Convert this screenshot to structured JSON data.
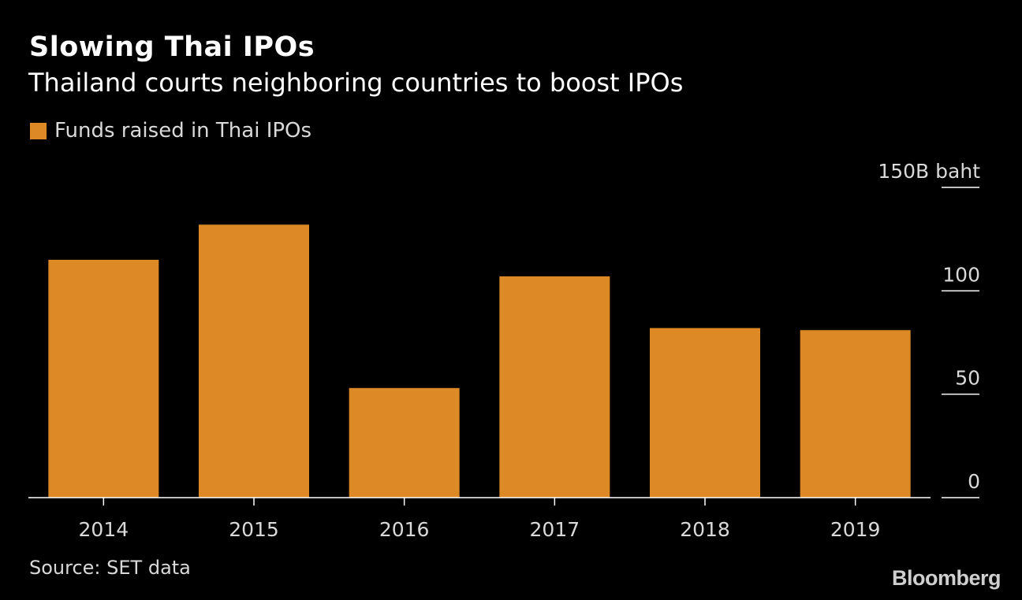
{
  "header": {
    "title": "Slowing Thai IPOs",
    "subtitle": "Thailand courts neighboring countries to boost IPOs"
  },
  "footer": {
    "source": "Source: SET data",
    "brand": "Bloomberg"
  },
  "colors": {
    "background": "#000000",
    "bar": "#dc8926",
    "axis": "#ffffff",
    "text": "#d9d9d9"
  },
  "chart_data": {
    "type": "bar",
    "title": "Slowing Thai IPOs",
    "subtitle": "Thailand courts neighboring countries to boost IPOs",
    "xlabel": "",
    "ylabel": "",
    "legend": [
      {
        "name": "Funds raised in Thai IPOs",
        "color": "#dc8926"
      }
    ],
    "legend_position": "top-left",
    "categories": [
      "2014",
      "2015",
      "2016",
      "2017",
      "2018",
      "2019"
    ],
    "series": [
      {
        "name": "Funds raised in Thai IPOs",
        "values": [
          115,
          132,
          53,
          107,
          82,
          81
        ]
      }
    ],
    "ylim": [
      0,
      150
    ],
    "yticks": [
      0,
      50,
      100,
      150
    ],
    "ytick_labels": [
      "0",
      "50",
      "100",
      "150B baht"
    ],
    "y_axis_side": "right",
    "grid": false
  }
}
